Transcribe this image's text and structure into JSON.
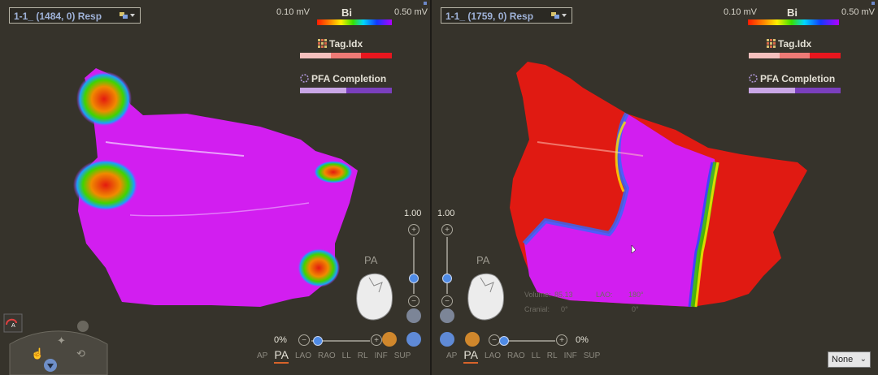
{
  "left": {
    "map_title": "1-1_ (1484, 0) Resp",
    "scale": {
      "min": "0.10 mV",
      "label": "Bi",
      "max": "0.50 mV"
    },
    "tag_legend": {
      "label": "Tag.Idx"
    },
    "pfa_legend": {
      "label": "PFA Completion"
    },
    "orientation_label": "PA",
    "opacity": {
      "value": "1.00"
    },
    "zoom": {
      "percent": "0%"
    },
    "views": [
      "AP",
      "PA",
      "LAO",
      "RAO",
      "LL",
      "RL",
      "INF",
      "SUP"
    ],
    "active_view": "PA"
  },
  "right": {
    "map_title": "1-1_ (1759, 0) Resp",
    "scale": {
      "min": "0.10 mV",
      "label": "Bi",
      "max": "0.50 mV"
    },
    "tag_legend": {
      "label": "Tag.Idx"
    },
    "pfa_legend": {
      "label": "PFA Completion"
    },
    "orientation_label": "PA",
    "opacity": {
      "value": "1.00"
    },
    "zoom": {
      "percent": "0%"
    },
    "views": [
      "AP",
      "PA",
      "LAO",
      "RAO",
      "LL",
      "RL",
      "INF",
      "SUP"
    ],
    "active_view": "PA",
    "stats": {
      "volume_label": "Volume:",
      "volume_value": "85.13",
      "lao_label": "LAO:",
      "lao_value": "180°",
      "cranial_label": "Cranial:",
      "cranial_value": "0°",
      "extra_value": "0°"
    },
    "overlay_dropdown": {
      "value": "None"
    }
  },
  "colors": {
    "background": "#35322a",
    "healthy_tissue": "#d21ef0",
    "scar": "#e01a12",
    "accent_active_view": "#d8632a",
    "tag_scale": [
      "#f5c0bd",
      "#ee7a76",
      "#e8161e"
    ],
    "pfa_scale": [
      "#c9a6e6",
      "#7a3fbd"
    ]
  }
}
